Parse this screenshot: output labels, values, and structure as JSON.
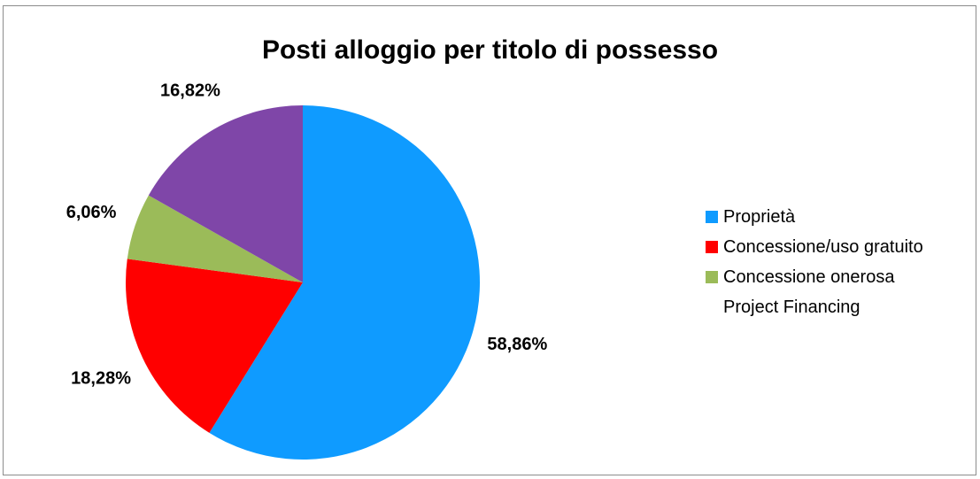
{
  "chart_data": {
    "type": "pie",
    "title": "Posti alloggio per titolo di possesso",
    "categories": [
      "Proprietà",
      "Concessione/uso gratuito",
      "Concessione onerosa",
      "Project Financing"
    ],
    "values": [
      58.86,
      18.28,
      6.06,
      16.82
    ],
    "labels": [
      "58,86%",
      "18,28%",
      "6,06%",
      "16,82%"
    ],
    "colors": [
      "#0f9bff",
      "#ff0000",
      "#9bbb59",
      "#7f46a8"
    ],
    "legend_swatches": [
      "#0f9bff",
      "#ff0000",
      "#9bbb59",
      ""
    ],
    "legend_position": "right"
  }
}
